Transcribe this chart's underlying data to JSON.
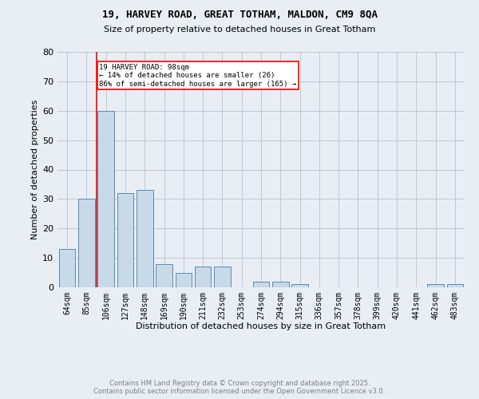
{
  "title1": "19, HARVEY ROAD, GREAT TOTHAM, MALDON, CM9 8QA",
  "title2": "Size of property relative to detached houses in Great Totham",
  "xlabel": "Distribution of detached houses by size in Great Totham",
  "ylabel": "Number of detached properties",
  "bin_labels": [
    "64sqm",
    "85sqm",
    "106sqm",
    "127sqm",
    "148sqm",
    "169sqm",
    "190sqm",
    "211sqm",
    "232sqm",
    "253sqm",
    "274sqm",
    "294sqm",
    "315sqm",
    "336sqm",
    "357sqm",
    "378sqm",
    "399sqm",
    "420sqm",
    "441sqm",
    "462sqm",
    "483sqm"
  ],
  "bar_values": [
    13,
    30,
    60,
    32,
    33,
    8,
    5,
    7,
    7,
    0,
    2,
    2,
    1,
    0,
    0,
    0,
    0,
    0,
    0,
    1,
    1
  ],
  "bar_color": "#c8d9e8",
  "bar_edge_color": "#5a8ab5",
  "vline_color": "red",
  "annotation_text": "19 HARVEY ROAD: 98sqm\n← 14% of detached houses are smaller (26)\n86% of semi-detached houses are larger (165) →",
  "annotation_box_color": "white",
  "annotation_box_edge_color": "red",
  "ylim": [
    0,
    80
  ],
  "yticks": [
    0,
    10,
    20,
    30,
    40,
    50,
    60,
    70,
    80
  ],
  "grid_color": "#c0c8d0",
  "background_color": "#e8eef4",
  "footer1": "Contains HM Land Registry data © Crown copyright and database right 2025.",
  "footer2": "Contains public sector information licensed under the Open Government Licence v3.0."
}
